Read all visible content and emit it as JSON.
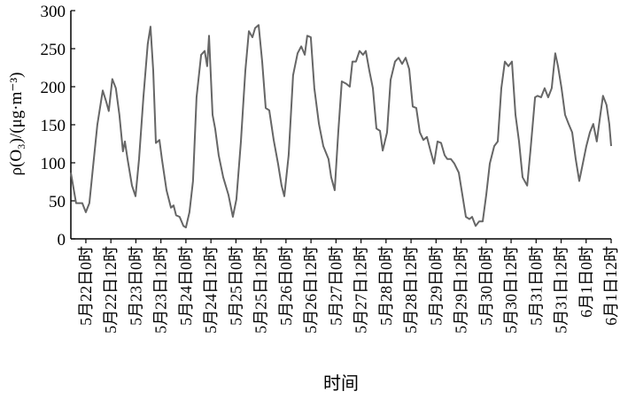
{
  "chart_data": {
    "type": "line",
    "y_label": "ρ(O₃)/(μg·m⁻³)",
    "x_label": "时间",
    "x": [
      -7.2,
      -4.7,
      -1.7,
      0,
      1.7,
      3.4,
      5.5,
      8.1,
      9.8,
      11.0,
      12.7,
      14.4,
      16.1,
      17.8,
      18.7,
      20.0,
      22.1,
      23.8,
      25.5,
      27.6,
      29.7,
      31.0,
      32.3,
      33.6,
      35.3,
      36.5,
      38.7,
      40.8,
      42.1,
      43.3,
      45.0,
      46.8,
      48.0,
      49.7,
      51.4,
      53.1,
      55.3,
      57.0,
      58.2,
      59.1,
      60.8,
      62.0,
      63.7,
      65.9,
      68.4,
      70.5,
      72.2,
      74.4,
      76.5,
      78.2,
      79.9,
      81.2,
      82.9,
      84.6,
      86.3,
      88.0,
      90.1,
      92.2,
      93.9,
      95.2,
      97.3,
      99.4,
      101.6,
      103.3,
      105.0,
      106.2,
      107.9,
      109.6,
      111.8,
      113.9,
      116.4,
      117.7,
      119.4,
      121.1,
      122.8,
      124.9,
      126.6,
      127.9,
      129.6,
      131.3,
      133.0,
      134.3,
      136.0,
      137.7,
      139.4,
      141.1,
      142.4,
      144.5,
      146.2,
      148.3,
      150.0,
      151.7,
      153.4,
      155.1,
      156.8,
      158.5,
      160.2,
      161.9,
      163.6,
      165.3,
      167.0,
      168.7,
      170.4,
      172.1,
      173.4,
      175.1,
      176.8,
      178.9,
      180.6,
      182.3,
      184.0,
      185.3,
      187.0,
      188.7,
      190.4,
      192.1,
      193.8,
      195.9,
      197.6,
      199.3,
      201.0,
      202.7,
      204.4,
      206.1,
      207.8,
      209.5,
      211.7,
      213.3,
      215.5,
      216.7,
      218.4,
      220.1,
      221.8,
      223.5,
      225.2,
      226.5,
      228.2,
      229.9,
      231.6,
      233.3,
      235.0,
      236.7,
      238.4,
      240.1,
      241.8,
      243.4,
      245.1,
      246.8,
      248.1,
      249.8,
      251.1,
      252.0
    ],
    "series": [
      {
        "color": "#666666",
        "values": [
          87,
          47,
          47,
          35,
          47,
          93,
          150,
          195,
          180,
          168,
          210,
          198,
          163,
          115,
          128,
          105,
          70,
          56,
          105,
          186,
          256,
          279,
          221,
          126,
          130,
          105,
          64,
          41,
          44,
          31,
          29,
          17,
          15,
          35,
          76,
          186,
          242,
          247,
          227,
          267,
          163,
          145,
          110,
          81,
          58,
          29,
          52,
          128,
          221,
          273,
          265,
          277,
          281,
          233,
          172,
          169,
          130,
          99,
          70,
          56,
          110,
          215,
          244,
          253,
          242,
          267,
          265,
          198,
          151,
          122,
          105,
          81,
          64,
          140,
          207,
          204,
          200,
          233,
          233,
          247,
          242,
          247,
          221,
          198,
          145,
          142,
          116,
          140,
          209,
          233,
          238,
          230,
          238,
          223,
          174,
          172,
          140,
          130,
          134,
          116,
          99,
          128,
          126,
          110,
          105,
          105,
          99,
          87,
          58,
          29,
          26,
          29,
          17,
          23,
          23,
          58,
          99,
          122,
          128,
          198,
          233,
          227,
          233,
          163,
          128,
          81,
          70,
          116,
          186,
          188,
          186,
          198,
          186,
          198,
          244,
          227,
          198,
          163,
          151,
          140,
          105,
          76,
          99,
          122,
          140,
          151,
          128,
          163,
          188,
          176,
          151,
          122
        ]
      }
    ],
    "xlim": [
      -7.2,
      252
    ],
    "ylim": [
      0,
      300
    ],
    "yticks": [
      0,
      50,
      100,
      150,
      200,
      250,
      300
    ],
    "xticks": [
      {
        "value": 0,
        "label": "5月22日0时"
      },
      {
        "value": 12,
        "label": "5月22日12时"
      },
      {
        "value": 24,
        "label": "5月23日0时"
      },
      {
        "value": 36,
        "label": "5月23日12时"
      },
      {
        "value": 48,
        "label": "5月24日0时"
      },
      {
        "value": 60,
        "label": "5月24日12时"
      },
      {
        "value": 72,
        "label": "5月25日0时"
      },
      {
        "value": 84,
        "label": "5月25日12时"
      },
      {
        "value": 96,
        "label": "5月26日0时"
      },
      {
        "value": 108,
        "label": "5月26日12时"
      },
      {
        "value": 120,
        "label": "5月27日0时"
      },
      {
        "value": 132,
        "label": "5月27日12时"
      },
      {
        "value": 144,
        "label": "5月28日0时"
      },
      {
        "value": 156,
        "label": "5月28日12时"
      },
      {
        "value": 168,
        "label": "5月29日0时"
      },
      {
        "value": 180,
        "label": "5月29日12时"
      },
      {
        "value": 192,
        "label": "5月30日0时"
      },
      {
        "value": 204,
        "label": "5月30日12时"
      },
      {
        "value": 216,
        "label": "5月31日0时"
      },
      {
        "value": 228,
        "label": "5月31日12时"
      },
      {
        "value": 240,
        "label": "6月1日0时"
      },
      {
        "value": 252,
        "label": "6月1日12时"
      }
    ]
  }
}
